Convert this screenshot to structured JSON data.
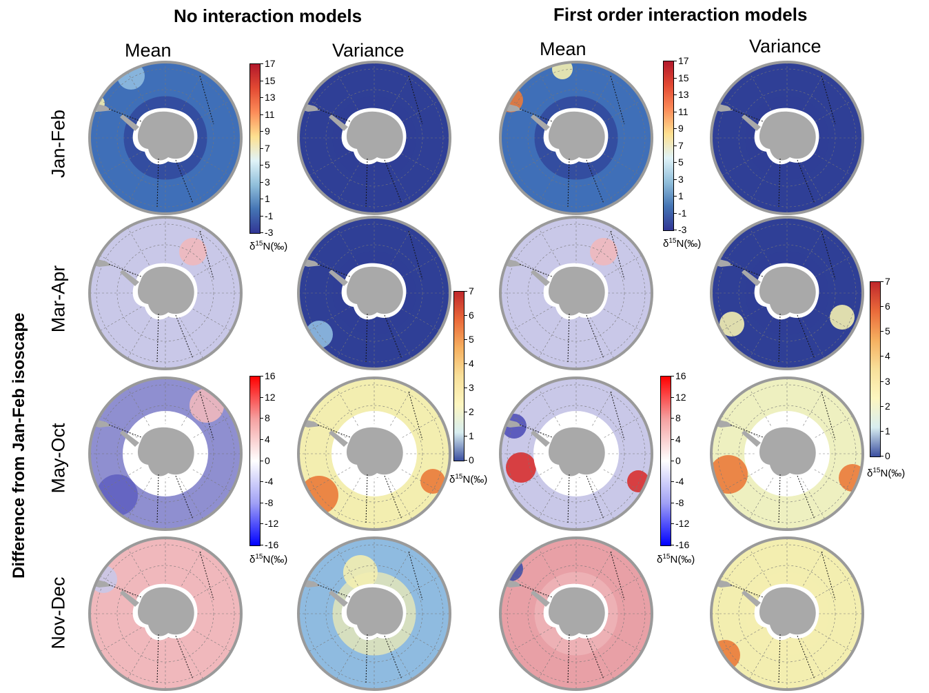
{
  "figure": {
    "side_title": "Difference from Jan-Feb isoscape",
    "groups": [
      {
        "title": "No interaction models"
      },
      {
        "title": "First order interaction models"
      }
    ],
    "columns": [
      {
        "label": "Mean"
      },
      {
        "label": "Variance"
      },
      {
        "label": "Mean"
      },
      {
        "label": "Variance"
      }
    ],
    "rows": [
      {
        "label": "Jan-Feb"
      },
      {
        "label": "Mar-Apr"
      },
      {
        "label": "May-Oct"
      },
      {
        "label": "Nov-Dec"
      }
    ],
    "colorbars": [
      {
        "id": "cb1",
        "ticks": [
          "17",
          "15",
          "13",
          "11",
          "9",
          "7",
          "5",
          "3",
          "1",
          "-1",
          "-3"
        ],
        "unit": "δ15N(‰)"
      },
      {
        "id": "cb2",
        "ticks": [
          "17",
          "15",
          "13",
          "11",
          "9",
          "7",
          "5",
          "3",
          "1",
          "-1",
          "-3"
        ],
        "unit": "δ15N(‰)"
      },
      {
        "id": "cb3",
        "ticks": [
          "7",
          "6",
          "5",
          "4",
          "3",
          "2",
          "1",
          "0"
        ],
        "unit": "δ15N(‰)"
      },
      {
        "id": "cb4",
        "ticks": [
          "7",
          "6",
          "5",
          "4",
          "3",
          "2",
          "1",
          "0"
        ],
        "unit": "δ15N(‰)"
      },
      {
        "id": "cb5",
        "ticks": [
          "16",
          "12",
          "8",
          "4",
          "0",
          "-4",
          "-8",
          "-12",
          "-16"
        ],
        "unit": "δ15N(‰)"
      },
      {
        "id": "cb6",
        "ticks": [
          "16",
          "12",
          "8",
          "4",
          "0",
          "-4",
          "-8",
          "-12",
          "-16"
        ],
        "unit": "δ15N(‰)"
      }
    ],
    "colors": {
      "map_dark_blue": "#2f3f96",
      "map_mid_blue": "#3f6fb8",
      "map_lavender": "#c9c8e8",
      "map_pink": "#f0b8bc",
      "map_yellow": "#f3eeb0",
      "map_orange": "#ea7a3a",
      "map_red": "#d83030",
      "map_light_blue": "#8fbbe0",
      "land_gray": "#a9a9a9",
      "ice_white": "#ffffff",
      "rim_gray": "#9a9a9a"
    }
  }
}
